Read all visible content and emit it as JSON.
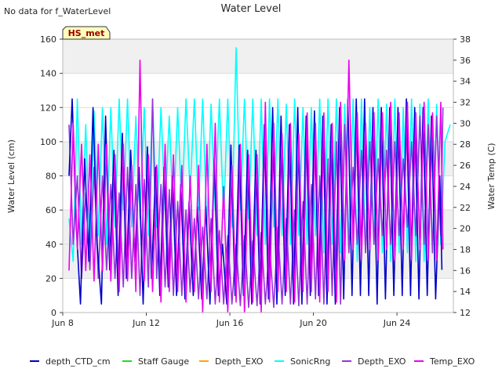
{
  "notice": "No data for f_WaterLevel",
  "chart_data": {
    "type": "line",
    "title": "Water Level",
    "badge": "HS_met",
    "ylabel_left": "Water Level (cm)",
    "ylabel_right": "Water Temp (C)",
    "xlim_days": [
      0,
      18.7
    ],
    "ylim_left": [
      0,
      160
    ],
    "ylim_right": [
      12,
      38
    ],
    "x_ticks": [
      {
        "day": 0,
        "label": "Jun 8"
      },
      {
        "day": 4,
        "label": "Jun 12"
      },
      {
        "day": 8,
        "label": "Jun 16"
      },
      {
        "day": 12,
        "label": "Jun 20"
      },
      {
        "day": 16,
        "label": "Jun 24"
      }
    ],
    "y_ticks_left": [
      0,
      20,
      40,
      60,
      80,
      100,
      120,
      140,
      160
    ],
    "y_ticks_right": [
      12,
      14,
      16,
      18,
      20,
      22,
      24,
      26,
      28,
      30,
      32,
      34,
      36,
      38
    ],
    "shaded_bands_left": [
      [
        20,
        60
      ],
      [
        80,
        100
      ],
      [
        140,
        160
      ]
    ],
    "series": [
      {
        "name": "depth_CTD_cm",
        "color": "#0000cc",
        "axis": "left",
        "x": [
          0.3,
          0.45,
          0.65,
          0.85,
          1.05,
          1.25,
          1.45,
          1.65,
          1.85,
          2.05,
          2.25,
          2.45,
          2.65,
          2.85,
          3.05,
          3.25,
          3.45,
          3.65,
          3.85,
          4.05,
          4.25,
          4.45,
          4.65,
          4.85,
          5.05,
          5.25,
          5.45,
          5.65,
          5.85,
          6.05,
          6.25,
          6.45,
          6.65,
          6.85,
          7.05,
          7.25,
          7.45,
          7.65,
          7.85,
          8.05,
          8.25,
          8.45,
          8.65,
          8.85,
          9.05,
          9.25,
          9.45,
          9.65,
          9.85,
          10.05,
          10.25,
          10.45,
          10.65,
          10.85,
          11.05,
          11.25,
          11.45,
          11.65,
          11.85,
          12.05,
          12.25,
          12.45,
          12.65,
          12.85,
          13.05,
          13.25,
          13.45,
          13.65,
          13.85,
          14.05,
          14.25,
          14.45,
          14.65,
          14.85,
          15.05,
          15.25,
          15.45,
          15.65,
          15.85,
          16.05,
          16.25,
          16.45,
          16.65,
          16.85,
          17.05,
          17.25,
          17.45,
          17.65,
          17.85,
          18.05,
          18.15
        ],
        "y": [
          80,
          125,
          50,
          5,
          90,
          30,
          120,
          40,
          5,
          115,
          25,
          95,
          10,
          105,
          20,
          95,
          30,
          85,
          5,
          97,
          20,
          85,
          10,
          85,
          15,
          80,
          10,
          75,
          8,
          65,
          10,
          62,
          8,
          62,
          5,
          90,
          10,
          40,
          5,
          98,
          10,
          98,
          10,
          95,
          5,
          95,
          5,
          110,
          8,
          120,
          5,
          115,
          10,
          110,
          5,
          120,
          5,
          115,
          10,
          118,
          10,
          115,
          5,
          110,
          5,
          120,
          8,
          125,
          10,
          125,
          10,
          125,
          10,
          120,
          5,
          120,
          8,
          120,
          10,
          120,
          10,
          125,
          10,
          120,
          8,
          120,
          10,
          115,
          8,
          80,
          25
        ]
      },
      {
        "name": "Staff Gauge",
        "color": "#22dd22",
        "axis": "left",
        "x": [],
        "y": []
      },
      {
        "name": "Depth_EXO",
        "color": "#ffa500",
        "axis": "left",
        "x": [],
        "y": []
      },
      {
        "name": "SonicRng",
        "color": "#00ffff",
        "axis": "left",
        "x": [
          0.3,
          0.5,
          0.7,
          0.9,
          1.1,
          1.3,
          1.5,
          1.7,
          1.9,
          2.1,
          2.3,
          2.5,
          2.7,
          2.9,
          3.1,
          3.3,
          3.5,
          3.7,
          3.9,
          4.1,
          4.3,
          4.5,
          4.7,
          4.9,
          5.1,
          5.3,
          5.5,
          5.7,
          5.9,
          6.1,
          6.3,
          6.5,
          6.7,
          6.9,
          7.1,
          7.3,
          7.5,
          7.7,
          7.9,
          8.1,
          8.3,
          8.5,
          8.7,
          8.9,
          9.1,
          9.3,
          9.5,
          9.7,
          9.9,
          10.1,
          10.3,
          10.5,
          10.7,
          10.9,
          11.1,
          11.3,
          11.5,
          11.7,
          11.9,
          12.1,
          12.3,
          12.5,
          12.7,
          12.9,
          13.1,
          13.3,
          13.5,
          13.7,
          13.9,
          14.1,
          14.3,
          14.5,
          14.7,
          14.9,
          15.1,
          15.3,
          15.5,
          15.7,
          15.9,
          16.1,
          16.3,
          16.5,
          16.7,
          16.9,
          17.1,
          17.3,
          17.5,
          17.7,
          17.9,
          18.1,
          18.3,
          18.55
        ],
        "y": [
          55,
          30,
          125,
          40,
          110,
          35,
          118,
          45,
          120,
          40,
          120,
          50,
          125,
          60,
          125,
          50,
          115,
          55,
          120,
          45,
          125,
          50,
          120,
          60,
          115,
          55,
          120,
          60,
          125,
          70,
          125,
          60,
          125,
          50,
          122,
          60,
          125,
          55,
          125,
          50,
          155,
          60,
          125,
          55,
          125,
          45,
          125,
          40,
          125,
          50,
          125,
          45,
          122,
          40,
          125,
          45,
          120,
          40,
          120,
          45,
          125,
          35,
          125,
          40,
          125,
          35,
          122,
          40,
          125,
          30,
          125,
          35,
          120,
          40,
          125,
          35,
          122,
          30,
          125,
          35,
          120,
          35,
          125,
          30,
          122,
          30,
          125,
          35,
          122,
          40,
          100,
          110
        ]
      },
      {
        "name": "Depth_EXO",
        "color": "#9933dd",
        "axis": "left",
        "x": [
          0.3,
          0.5,
          0.7,
          0.9,
          1.1,
          1.3,
          1.5,
          1.7,
          1.9,
          2.1,
          2.3,
          2.5,
          2.7,
          2.9,
          3.1,
          3.3,
          3.5,
          3.7,
          3.9,
          4.1,
          4.3,
          4.5,
          4.7,
          4.9,
          5.1,
          5.3,
          5.5,
          5.7,
          5.9,
          6.1,
          6.3,
          6.5,
          6.7,
          6.9,
          7.1,
          7.3,
          7.5,
          7.7,
          7.9,
          8.1,
          8.3,
          8.5,
          8.7,
          8.9,
          9.1,
          9.3,
          9.5,
          9.7,
          9.9,
          10.1,
          10.3,
          10.5,
          10.7,
          10.9,
          11.1,
          11.3,
          11.5,
          11.7,
          11.9,
          12.1,
          12.3,
          12.5,
          12.7,
          12.9,
          13.1,
          13.3,
          13.5,
          13.7,
          13.9,
          14.1,
          14.3,
          14.5,
          14.7,
          14.9,
          15.1,
          15.3,
          15.5,
          15.7,
          15.9,
          16.1,
          16.3,
          16.5,
          16.7,
          16.9,
          17.1,
          17.3,
          17.5,
          17.7,
          17.9,
          18.1,
          18.2
        ],
        "y": [
          110,
          40,
          80,
          20,
          70,
          25,
          85,
          20,
          80,
          25,
          75,
          20,
          70,
          15,
          85,
          20,
          75,
          10,
          78,
          15,
          125,
          20,
          75,
          15,
          72,
          10,
          65,
          10,
          60,
          12,
          55,
          8,
          50,
          8,
          55,
          5,
          48,
          5,
          45,
          5,
          40,
          4,
          45,
          3,
          42,
          4,
          47,
          5,
          40,
          3,
          50,
          5,
          55,
          5,
          60,
          4,
          65,
          5,
          75,
          8,
          80,
          5,
          90,
          10,
          100,
          5,
          110,
          35,
          85,
          40,
          95,
          35,
          100,
          40,
          90,
          45,
          95,
          40,
          100,
          45,
          90,
          50,
          100,
          45,
          115,
          40,
          110,
          35,
          115,
          45,
          120
        ]
      },
      {
        "name": "Temp_EXO",
        "color": "#ee00ee",
        "axis": "right",
        "x": [
          0.3,
          0.5,
          0.7,
          0.9,
          1.1,
          1.3,
          1.5,
          1.7,
          1.9,
          2.1,
          2.3,
          2.5,
          2.7,
          2.9,
          3.1,
          3.3,
          3.5,
          3.7,
          3.9,
          4.1,
          4.3,
          4.5,
          4.7,
          4.9,
          5.1,
          5.3,
          5.5,
          5.7,
          5.9,
          6.1,
          6.3,
          6.5,
          6.7,
          6.9,
          7.1,
          7.3,
          7.5,
          7.7,
          7.9,
          8.1,
          8.3,
          8.5,
          8.7,
          8.9,
          9.1,
          9.3,
          9.5,
          9.7,
          9.9,
          10.1,
          10.3,
          10.5,
          10.7,
          10.9,
          11.1,
          11.3,
          11.5,
          11.7,
          11.9,
          12.1,
          12.3,
          12.5,
          12.7,
          12.9,
          13.1,
          13.3,
          13.5,
          13.7,
          13.9,
          14.1,
          14.3,
          14.5,
          14.7,
          14.9,
          15.1,
          15.3,
          15.5,
          15.7,
          15.9,
          16.1,
          16.3,
          16.5,
          16.7,
          16.9,
          17.1,
          17.3,
          17.5,
          17.7,
          17.9,
          18.1,
          18.2
        ],
        "y": [
          16,
          30,
          18,
          28,
          16,
          27,
          15,
          28,
          16,
          28,
          15,
          27,
          14,
          28,
          15,
          26,
          14,
          36,
          15,
          27,
          14,
          26,
          13,
          28,
          14,
          27,
          14,
          26,
          13,
          25,
          14,
          26,
          12,
          28,
          14,
          30,
          13,
          24,
          12,
          26,
          13,
          28,
          12,
          27,
          13,
          27,
          12,
          32,
          13,
          30,
          14,
          29,
          14,
          30,
          13,
          29,
          14,
          31,
          14,
          30,
          13,
          31,
          14,
          30,
          13,
          32,
          17,
          36,
          18,
          31,
          17,
          30,
          18,
          31,
          17,
          31,
          18,
          32,
          17,
          31,
          18,
          32,
          17,
          31,
          18,
          32,
          17,
          31,
          17,
          32,
          18
        ]
      }
    ],
    "legend": [
      "depth_CTD_cm",
      "Staff Gauge",
      "Depth_EXO",
      "SonicRng",
      "Depth_EXO",
      "Temp_EXO"
    ],
    "legend_position": "bottom"
  }
}
